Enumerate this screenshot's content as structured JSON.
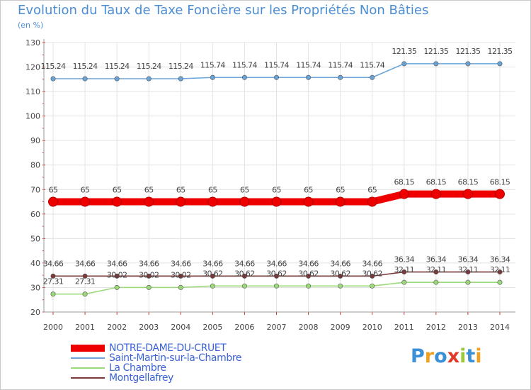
{
  "chart_data": {
    "type": "line",
    "title": "Evolution du Taux de Taxe Foncière sur les Propriétés Non Bâties",
    "subtitle": "(en %)",
    "xlabel": "",
    "ylabel": "",
    "ylim": [
      20,
      130
    ],
    "yticks": [
      20,
      30,
      40,
      50,
      60,
      70,
      80,
      90,
      100,
      110,
      120,
      130
    ],
    "grid": true,
    "legend_position": "bottom-left",
    "categories": [
      "2000",
      "2001",
      "2002",
      "2003",
      "2004",
      "2005",
      "2006",
      "2007",
      "2008",
      "2009",
      "2010",
      "2011",
      "2012",
      "2013",
      "2014"
    ],
    "series": [
      {
        "name": "NOTRE-DAME-DU-CRUET",
        "color": "#ee0000",
        "emphasis": true,
        "values": [
          65,
          65,
          65,
          65,
          65,
          65,
          65,
          65,
          65,
          65,
          65,
          68.15,
          68.15,
          68.15,
          68.15
        ],
        "labels": [
          "65",
          "65",
          "65",
          "65",
          "65",
          "65",
          "65",
          "65",
          "65",
          "65",
          "65",
          "68.15",
          "68.15",
          "68.15",
          "68.15"
        ]
      },
      {
        "name": "Saint-Martin-sur-la-Chambre",
        "color": "#6aa4d8",
        "emphasis": false,
        "values": [
          115.24,
          115.24,
          115.24,
          115.24,
          115.24,
          115.74,
          115.74,
          115.74,
          115.74,
          115.74,
          115.74,
          121.35,
          121.35,
          121.35,
          121.35
        ],
        "labels": [
          "115.24",
          "115.24",
          "115.24",
          "115.24",
          "115.24",
          "115.74",
          "115.74",
          "115.74",
          "115.74",
          "115.74",
          "115.74",
          "121.35",
          "121.35",
          "121.35",
          "121.35"
        ]
      },
      {
        "name": "La Chambre",
        "color": "#9cd97a",
        "emphasis": false,
        "values": [
          27.31,
          27.31,
          30.02,
          30.02,
          30.02,
          30.62,
          30.62,
          30.62,
          30.62,
          30.62,
          30.62,
          32.11,
          32.11,
          32.11,
          32.11
        ],
        "labels": [
          "27.31",
          "27.31",
          "30.02",
          "30.02",
          "30.02",
          "30.62",
          "30.62",
          "30.62",
          "30.62",
          "30.62",
          "30.62",
          "32.11",
          "32.11",
          "32.11",
          "32.11"
        ]
      },
      {
        "name": "Montgellafrey",
        "color": "#7a3a3a",
        "emphasis": false,
        "values": [
          34.66,
          34.66,
          34.66,
          34.66,
          34.66,
          34.66,
          34.66,
          34.66,
          34.66,
          34.66,
          34.66,
          36.34,
          36.34,
          36.34,
          36.34
        ],
        "labels": [
          "34.66",
          "34.66",
          "34.66",
          "34.66",
          "34.66",
          "34.66",
          "34.66",
          "34.66",
          "34.66",
          "34.66",
          "34.66",
          "36.34",
          "36.34",
          "36.34",
          "36.34"
        ]
      }
    ]
  },
  "logo": {
    "letters": [
      "P",
      "r",
      "o",
      "x",
      "i",
      "t",
      "i"
    ],
    "colors": [
      "#3a8fd6",
      "#f0a020",
      "#3a8fd6",
      "#e23a2a",
      "#9ac83a",
      "#3a8fd6",
      "#f0a020"
    ]
  }
}
